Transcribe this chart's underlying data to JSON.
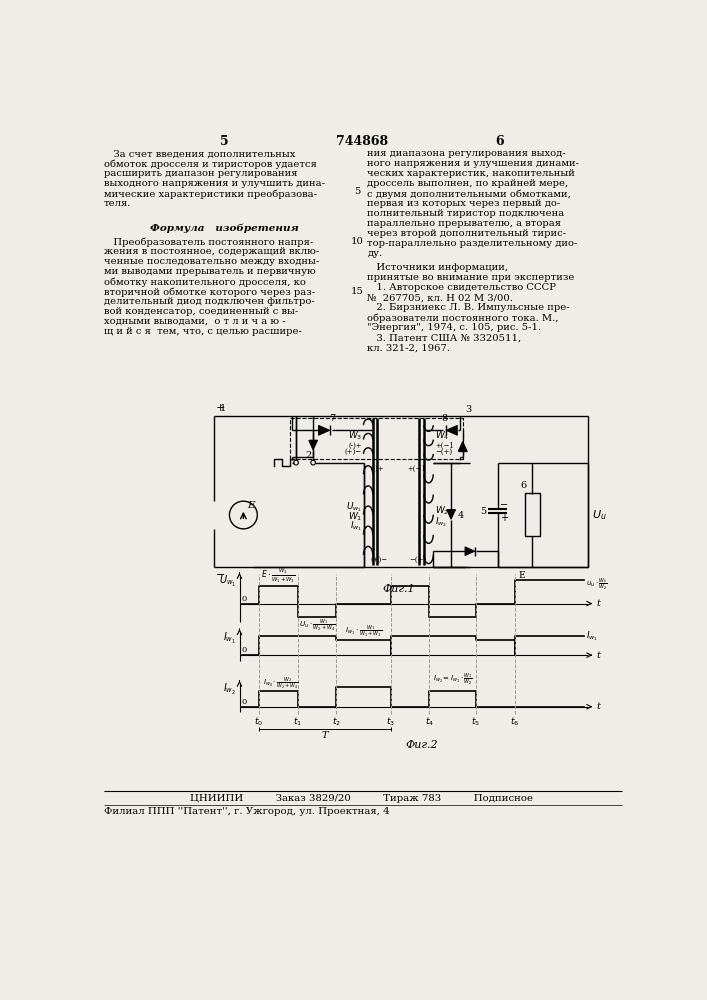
{
  "page_color": "#f0ede8",
  "title_number": "744868",
  "page_left": "5",
  "page_right": "6",
  "left_col": [
    "   За счет введения дополнительных",
    "обмоток дросселя и тиристоров удается",
    "расширить диапазон регулирования",
    "выходного напряжения и улучшить дина-",
    "мические характеристики преобразова-",
    "теля."
  ],
  "formula_header": "Формула   изобретения",
  "formula_lines": [
    "   Преобразователь постоянного напря-",
    "жения в постоянное, содержащий вклю-",
    "ченные последовательно между входны-",
    "ми выводами прерыватель и первичную",
    "обмотку накопительного дросселя, ко",
    "вторичной обмотке которого через раз-",
    "делительный диод подключен фильтро-",
    "вой конденсатор, соединенный с вы-",
    "ходными выводами,  о т л и ч а ю -",
    "щ и й с я  тем, что, с целью расшире-"
  ],
  "right_col": [
    "ния диапазона регулирования выход-",
    "ного напряжения и улучшения динами-",
    "ческих характеристик, накопительный",
    "дроссель выполнен, по крайней мере,",
    "с двумя дополнительными обмотками,",
    "первая из которых через первый до-",
    "полнительный тиристор подключена",
    "параллельно прерывателю, а вторая",
    "через второй дополнительный тирис-",
    "тор-параллельно разделительному дио-",
    "ду."
  ],
  "sources_lines": [
    "   Источники информации,",
    "принятые во внимание при экспертизе",
    "   1. Авторское свидетельство СССР",
    "№  267705, кл. Н 02 М 3/00.",
    "   2. Бирзниекс Л. В. Импульсные пре-",
    "образователи постоянного тока. М.,",
    "\"Энергия\", 1974, с. 105, рис. 5-1.",
    "   3. Патент США № 3320511,",
    "кл. 321-2, 1967."
  ],
  "fig1_caption": "Фиг.1",
  "fig2_caption": "Фиг.2",
  "footer1": "ЦНИИПИ          Заказ 3829/20          Тираж 783          Подписное",
  "footer2": "Филиал ППП ''Патент'', г. Ужгород, ул. Проектная, 4"
}
